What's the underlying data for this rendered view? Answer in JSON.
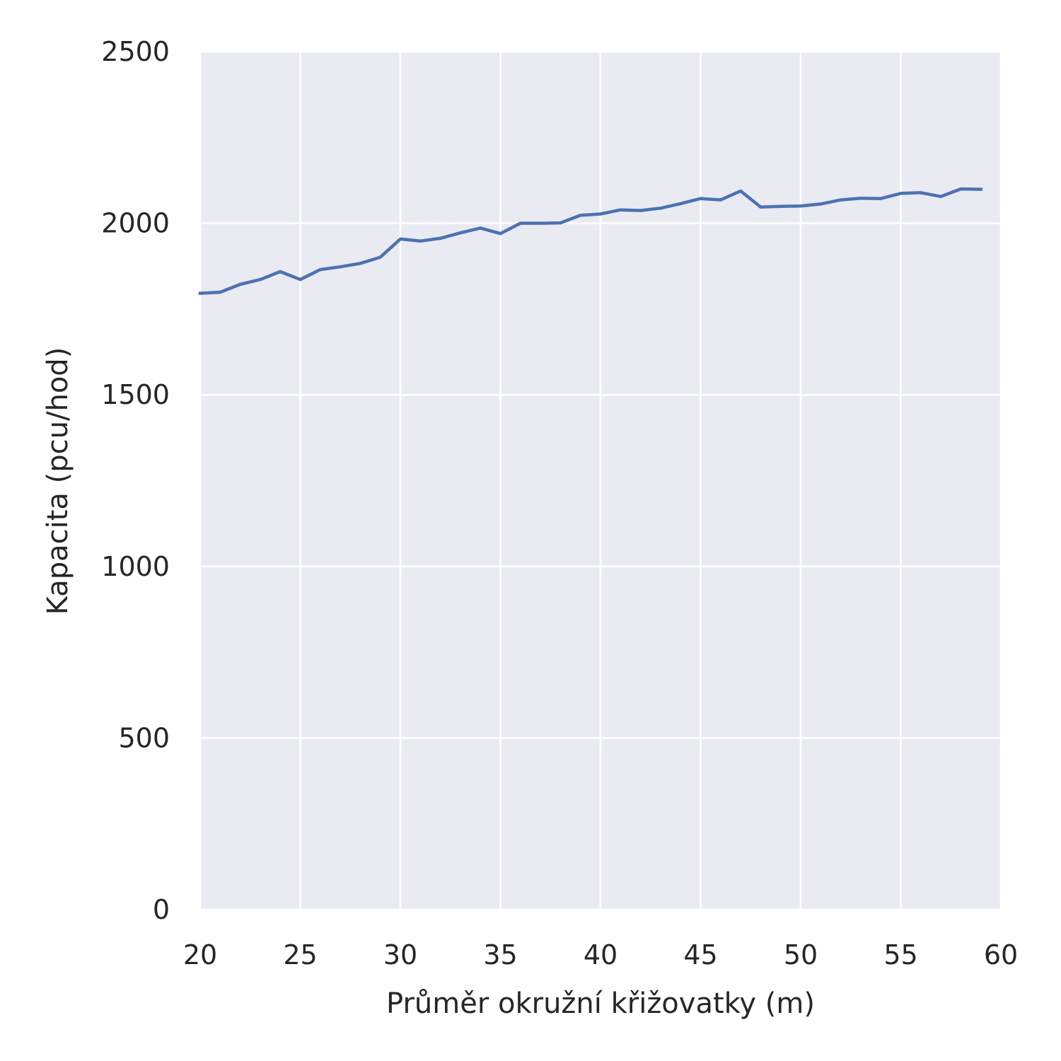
{
  "chart_data": {
    "type": "line",
    "title": "",
    "xlabel": "Průměr okružní křižovatky (m)",
    "ylabel": "Kapacita (pcu/hod)",
    "xlim": [
      20,
      60
    ],
    "ylim": [
      0,
      2500
    ],
    "xticks": [
      20,
      25,
      30,
      35,
      40,
      45,
      50,
      55,
      60
    ],
    "yticks": [
      0,
      500,
      1000,
      1500,
      2000,
      2500
    ],
    "grid": true,
    "colors": {
      "background": "#eaeaf2",
      "grid": "#ffffff",
      "line": "#4c72b0"
    },
    "series": [
      {
        "x": [
          20,
          21,
          22,
          23,
          24,
          25,
          26,
          27,
          28,
          29,
          30,
          31,
          32,
          33,
          34,
          35,
          36,
          37,
          38,
          39,
          40,
          41,
          42,
          43,
          44,
          45,
          46,
          47,
          48,
          49,
          50,
          51,
          52,
          53,
          54,
          55,
          56,
          57,
          58,
          59
        ],
        "values": [
          1796,
          1799,
          1822,
          1836,
          1859,
          1836,
          1865,
          1873,
          1883,
          1901,
          1954,
          1948,
          1956,
          1972,
          1986,
          1970,
          2000,
          2000,
          2001,
          2023,
          2027,
          2039,
          2037,
          2044,
          2057,
          2072,
          2068,
          2094,
          2047,
          2049,
          2050,
          2056,
          2068,
          2073,
          2072,
          2087,
          2089,
          2078,
          2100,
          2099
        ]
      }
    ]
  }
}
